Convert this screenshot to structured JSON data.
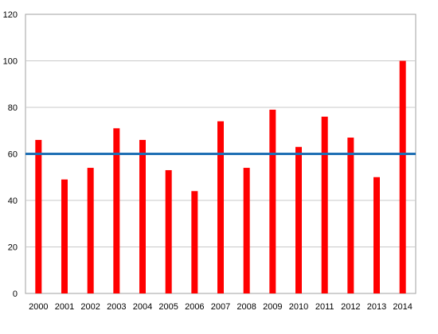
{
  "chart_data": {
    "type": "bar",
    "categories": [
      "2000",
      "2001",
      "2002",
      "2003",
      "2004",
      "2005",
      "2006",
      "2007",
      "2008",
      "2009",
      "2010",
      "2011",
      "2012",
      "2013",
      "2014"
    ],
    "values": [
      66,
      49,
      54,
      71,
      66,
      53,
      44,
      74,
      54,
      79,
      63,
      76,
      67,
      50,
      100
    ],
    "reference_line": 60,
    "ylim": [
      0,
      120
    ],
    "yticks": [
      0,
      20,
      40,
      60,
      80,
      100,
      120
    ],
    "title": "",
    "xlabel": "",
    "ylabel": "",
    "grid": "horizontal",
    "legend": "none",
    "bar_color": "#ff0000",
    "line_color": "#1f6fb4",
    "grid_color": "#c8c8c8"
  }
}
